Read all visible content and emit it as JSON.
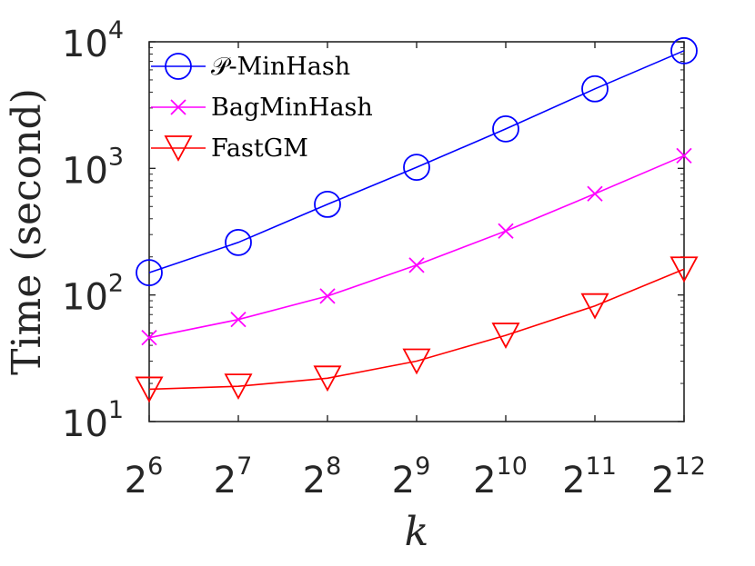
{
  "chart_data": {
    "type": "line",
    "xlabel": "k",
    "ylabel": "Time (second)",
    "x": [
      6,
      7,
      8,
      9,
      10,
      11,
      12
    ],
    "x_tick_labels": [
      {
        "base": "2",
        "exp": "6"
      },
      {
        "base": "2",
        "exp": "7"
      },
      {
        "base": "2",
        "exp": "8"
      },
      {
        "base": "2",
        "exp": "9"
      },
      {
        "base": "2",
        "exp": "10"
      },
      {
        "base": "2",
        "exp": "11"
      },
      {
        "base": "2",
        "exp": "12"
      }
    ],
    "y_scale": "log",
    "ylim": [
      10,
      10000
    ],
    "y_tick_labels": [
      {
        "base": "10",
        "exp": "1"
      },
      {
        "base": "10",
        "exp": "2"
      },
      {
        "base": "10",
        "exp": "3"
      },
      {
        "base": "10",
        "exp": "4"
      }
    ],
    "grid": false,
    "legend_position": "top-left",
    "series": [
      {
        "name": "𝒫-MinHash",
        "color": "#0000ff",
        "marker": "circle",
        "values": [
          150,
          260,
          520,
          1020,
          2050,
          4250,
          8500
        ]
      },
      {
        "name": "BagMinHash",
        "color": "#ff00ff",
        "marker": "x",
        "values": [
          46,
          64,
          98,
          172,
          320,
          630,
          1260
        ]
      },
      {
        "name": "FastGM",
        "color": "#ff0000",
        "marker": "triangle-down",
        "values": [
          18,
          19,
          22,
          30,
          48,
          82,
          160
        ]
      }
    ]
  }
}
